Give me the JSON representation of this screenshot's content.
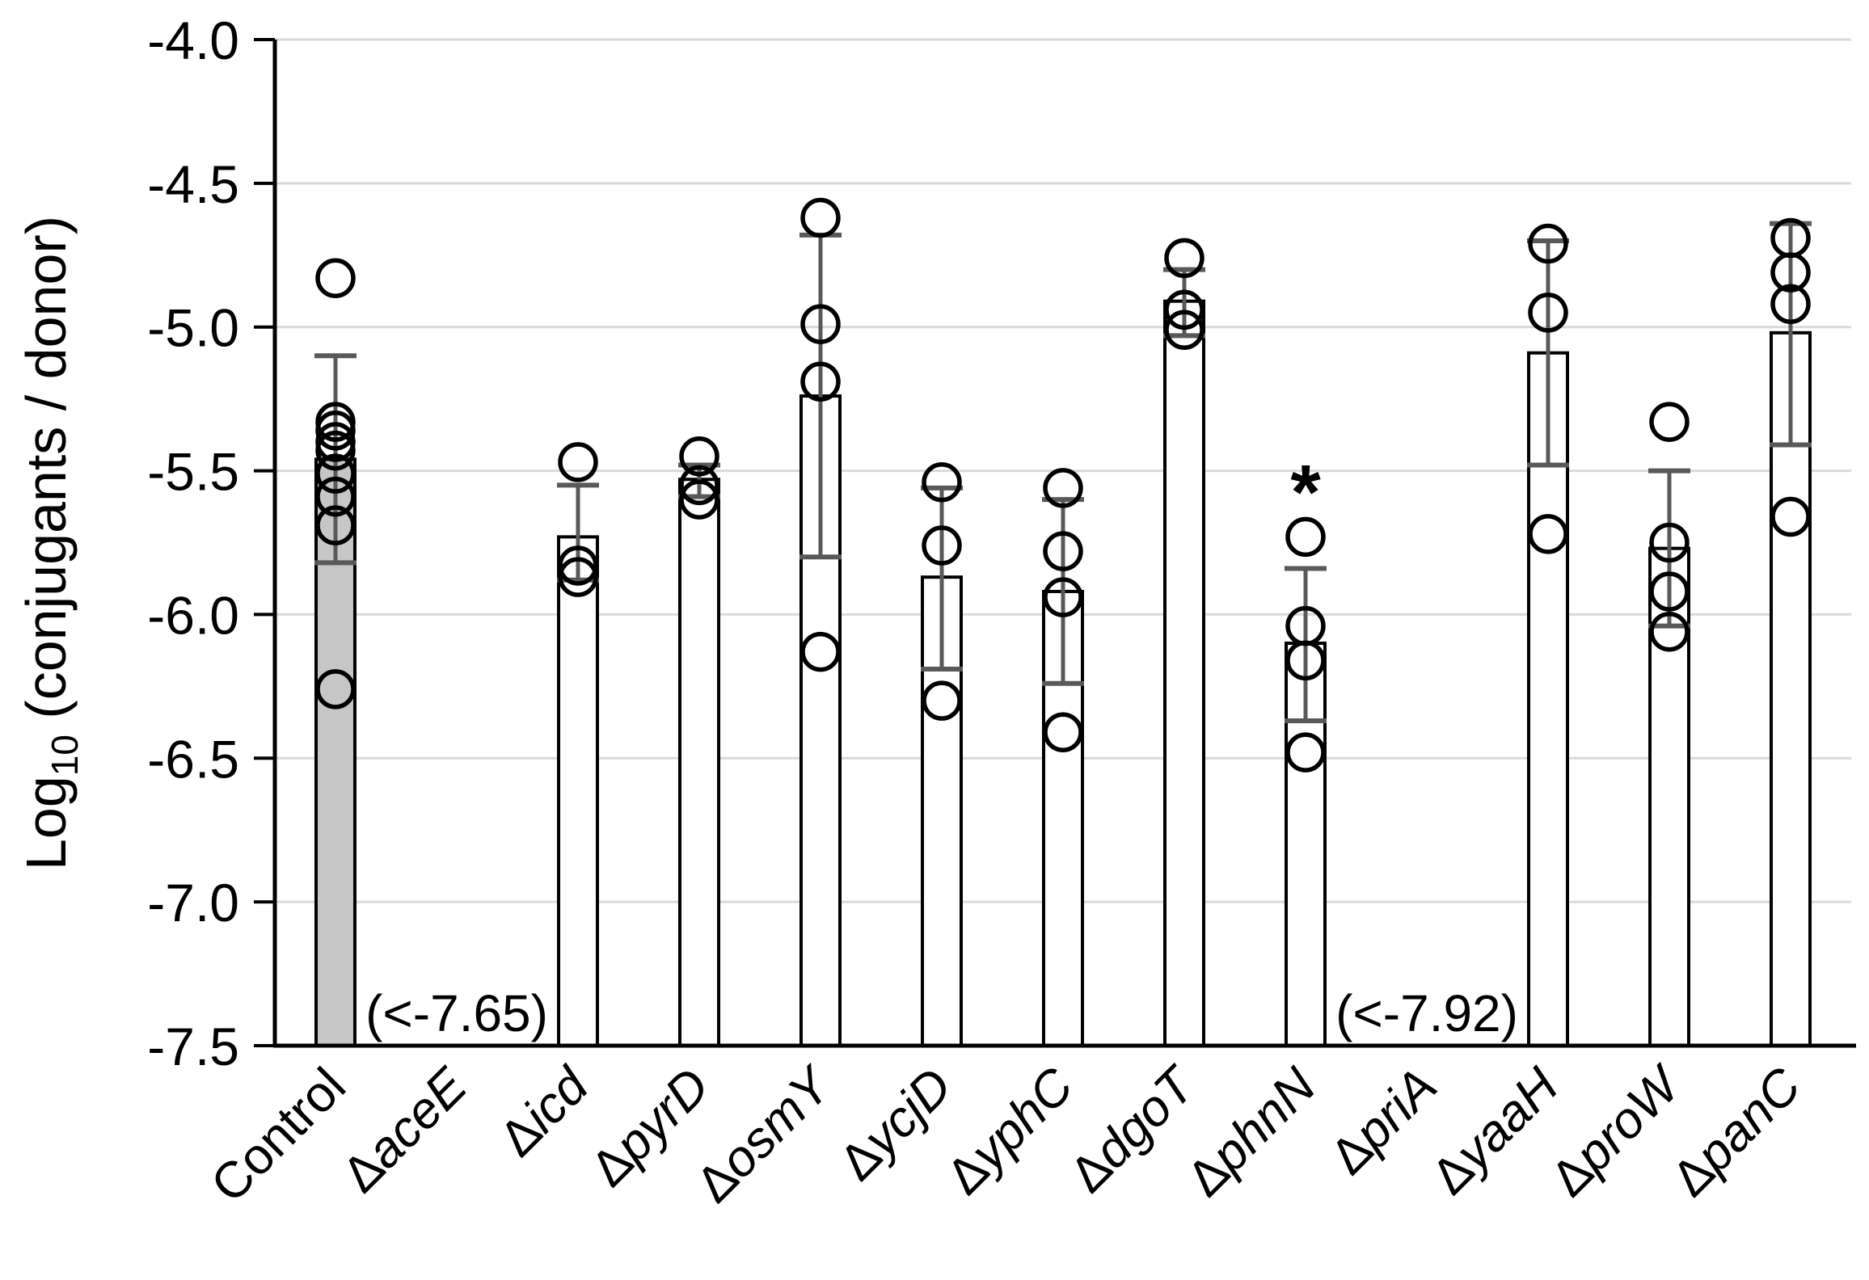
{
  "chart_data": {
    "type": "bar",
    "title": "",
    "xlabel": "",
    "ylabel_parts": {
      "prefix": "Log",
      "sub": "10",
      "suffix": " (conjugants / donor)"
    },
    "ylim": [
      -7.5,
      -4.0
    ],
    "grid": true,
    "yticks": [
      {
        "value": -4.0,
        "label": "-4.0"
      },
      {
        "value": -4.5,
        "label": "-4.5"
      },
      {
        "value": -5.0,
        "label": "-5.0"
      },
      {
        "value": -5.5,
        "label": "-5.5"
      },
      {
        "value": -6.0,
        "label": "-6.0"
      },
      {
        "value": -6.5,
        "label": "-6.5"
      },
      {
        "value": -7.0,
        "label": "-7.0"
      },
      {
        "value": -7.5,
        "label": "-7.5"
      }
    ],
    "categories": [
      "Control",
      "ΔaceE",
      "Δicd",
      "ΔpyrD",
      "ΔosmY",
      "ΔycjD",
      "ΔyphC",
      "ΔdgoT",
      "ΔphnN",
      "ΔpriA",
      "ΔyaaH",
      "ΔproW",
      "ΔpanC"
    ],
    "bars": [
      {
        "category": "Control",
        "mean": -5.46,
        "err_top": -5.1,
        "err_bottom": -5.82,
        "points": [
          -4.83,
          -5.33,
          -5.36,
          -5.4,
          -5.43,
          -5.51,
          -5.59,
          -5.69,
          -6.26
        ],
        "control": true,
        "annotation": null,
        "significance": null
      },
      {
        "category": "ΔaceE",
        "mean": null,
        "err_top": null,
        "err_bottom": null,
        "points": [],
        "control": false,
        "annotation": "(<-7.65)",
        "significance": null
      },
      {
        "category": "Δicd",
        "mean": -5.73,
        "err_top": -5.55,
        "err_bottom": -5.88,
        "points": [
          -5.47,
          -5.83,
          -5.87
        ],
        "control": false,
        "annotation": null,
        "significance": null
      },
      {
        "category": "ΔpyrD",
        "mean": -5.53,
        "err_top": -5.48,
        "err_bottom": -5.59,
        "points": [
          -5.45,
          -5.55,
          -5.6
        ],
        "control": false,
        "annotation": null,
        "significance": null
      },
      {
        "category": "ΔosmY",
        "mean": -5.24,
        "err_top": -4.68,
        "err_bottom": -5.8,
        "points": [
          -4.62,
          -4.99,
          -5.19,
          -6.13
        ],
        "control": false,
        "annotation": null,
        "significance": null
      },
      {
        "category": "ΔycjD",
        "mean": -5.87,
        "err_top": -5.56,
        "err_bottom": -6.19,
        "points": [
          -5.54,
          -5.76,
          -6.3
        ],
        "control": false,
        "annotation": null,
        "significance": null
      },
      {
        "category": "ΔyphC",
        "mean": -5.92,
        "err_top": -5.6,
        "err_bottom": -6.24,
        "points": [
          -5.56,
          -5.78,
          -5.94,
          -6.41
        ],
        "control": false,
        "annotation": null,
        "significance": null
      },
      {
        "category": "ΔdgoT",
        "mean": -4.91,
        "err_top": -4.8,
        "err_bottom": -5.03,
        "points": [
          -4.76,
          -4.94,
          -5.01
        ],
        "control": false,
        "annotation": null,
        "significance": null
      },
      {
        "category": "ΔphnN",
        "mean": -6.1,
        "err_top": -5.84,
        "err_bottom": -6.37,
        "points": [
          -5.73,
          -6.04,
          -6.16,
          -6.48
        ],
        "control": false,
        "annotation": null,
        "significance": "*"
      },
      {
        "category": "ΔpriA",
        "mean": null,
        "err_top": null,
        "err_bottom": null,
        "points": [],
        "control": false,
        "annotation": "(<-7.92)",
        "significance": null
      },
      {
        "category": "ΔyaaH",
        "mean": -5.09,
        "err_top": -4.7,
        "err_bottom": -5.48,
        "points": [
          -4.71,
          -4.95,
          -5.72
        ],
        "control": false,
        "annotation": null,
        "significance": null
      },
      {
        "category": "ΔproW",
        "mean": -5.77,
        "err_top": -5.5,
        "err_bottom": -6.04,
        "points": [
          -5.33,
          -5.75,
          -5.92,
          -6.06
        ],
        "control": false,
        "annotation": null,
        "significance": null
      },
      {
        "category": "ΔpanC",
        "mean": -5.02,
        "err_top": -4.64,
        "err_bottom": -5.41,
        "points": [
          -4.69,
          -4.81,
          -4.92,
          -5.66
        ],
        "control": false,
        "annotation": null,
        "significance": null
      }
    ],
    "colors": {
      "bar_fill": "#FFFFFF",
      "bar_fill_control": "#C6C6C6",
      "bar_stroke": "#000000",
      "error_bar": "#595959",
      "marker_stroke": "#000000",
      "gridline": "#D9D9D9",
      "axis": "#000000",
      "text": "#000000"
    }
  }
}
